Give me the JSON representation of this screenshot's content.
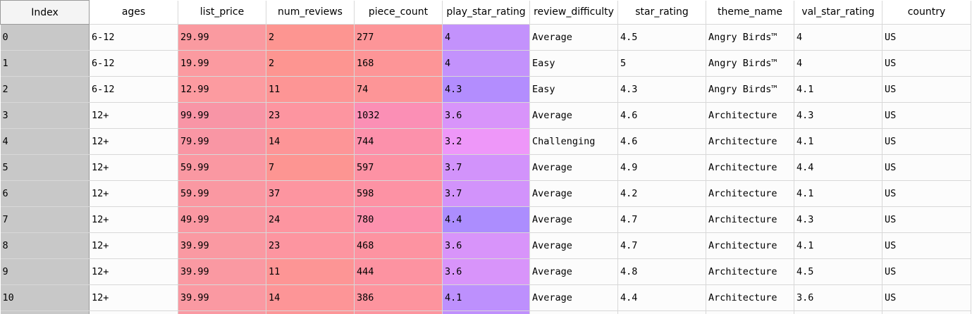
{
  "columns": [
    {
      "key": "index",
      "label": "Index",
      "width": 126
    },
    {
      "key": "ages",
      "label": "ages",
      "width": 126
    },
    {
      "key": "list_price",
      "label": "list_price",
      "width": 125
    },
    {
      "key": "num_reviews",
      "label": "num_reviews",
      "width": 125
    },
    {
      "key": "piece_count",
      "label": "piece_count",
      "width": 125
    },
    {
      "key": "play_star_rating",
      "label": "play_star_rating",
      "width": 124
    },
    {
      "key": "review_difficulty",
      "label": "review_difficulty",
      "width": 125
    },
    {
      "key": "star_rating",
      "label": "star_rating",
      "width": 125
    },
    {
      "key": "theme_name",
      "label": "theme_name",
      "width": 125
    },
    {
      "key": "val_star_rating",
      "label": "val_star_rating",
      "width": 125
    },
    {
      "key": "country",
      "label": "country",
      "width": 126
    }
  ],
  "rows": [
    {
      "index": "0",
      "ages": "6-12",
      "list_price": "29.99",
      "num_reviews": "2",
      "piece_count": "277",
      "play_star_rating": "4",
      "review_difficulty": "Average",
      "star_rating": "4.5",
      "theme_name": "Angry Birds™",
      "val_star_rating": "4",
      "country": "US",
      "colors": {
        "list_price": "#fa9aa0",
        "num_reviews": "#fd9591",
        "piece_count": "#fd9598",
        "play_star_rating": "#c392fc"
      }
    },
    {
      "index": "1",
      "ages": "6-12",
      "list_price": "19.99",
      "num_reviews": "2",
      "piece_count": "168",
      "play_star_rating": "4",
      "review_difficulty": "Easy",
      "star_rating": "5",
      "theme_name": "Angry Birds™",
      "val_star_rating": "4",
      "country": "US",
      "colors": {
        "list_price": "#fb9aa0",
        "num_reviews": "#fd9591",
        "piece_count": "#fd9597",
        "play_star_rating": "#c392fc"
      }
    },
    {
      "index": "2",
      "ages": "6-12",
      "list_price": "12.99",
      "num_reviews": "11",
      "piece_count": "74",
      "play_star_rating": "4.3",
      "review_difficulty": "Easy",
      "star_rating": "4.3",
      "theme_name": "Angry Birds™",
      "val_star_rating": "4.1",
      "country": "US",
      "colors": {
        "list_price": "#fc9ba0",
        "num_reviews": "#fd9595",
        "piece_count": "#fd9597",
        "play_star_rating": "#b38dfe"
      }
    },
    {
      "index": "3",
      "ages": "12+",
      "list_price": "99.99",
      "num_reviews": "23",
      "piece_count": "1032",
      "play_star_rating": "3.6",
      "review_difficulty": "Average",
      "star_rating": "4.6",
      "theme_name": "Architecture",
      "val_star_rating": "4.3",
      "country": "US",
      "colors": {
        "list_price": "#f895a6",
        "num_reviews": "#fd95a0",
        "piece_count": "#fb8fb5",
        "play_star_rating": "#d894fa"
      }
    },
    {
      "index": "4",
      "ages": "12+",
      "list_price": "79.99",
      "num_reviews": "14",
      "piece_count": "744",
      "play_star_rating": "3.2",
      "review_difficulty": "Challenging",
      "star_rating": "4.6",
      "theme_name": "Architecture",
      "val_star_rating": "4.1",
      "country": "US",
      "colors": {
        "list_price": "#f996a4",
        "num_reviews": "#fd9597",
        "piece_count": "#fc91ab",
        "play_star_rating": "#ee97f9"
      }
    },
    {
      "index": "5",
      "ages": "12+",
      "list_price": "59.99",
      "num_reviews": "7",
      "piece_count": "597",
      "play_star_rating": "3.7",
      "review_difficulty": "Average",
      "star_rating": "4.9",
      "theme_name": "Architecture",
      "val_star_rating": "4.4",
      "country": "US",
      "colors": {
        "list_price": "#fa98a2",
        "num_reviews": "#fd9592",
        "piece_count": "#fd92a4",
        "play_star_rating": "#d293fb"
      }
    },
    {
      "index": "6",
      "ages": "12+",
      "list_price": "59.99",
      "num_reviews": "37",
      "piece_count": "598",
      "play_star_rating": "3.7",
      "review_difficulty": "Average",
      "star_rating": "4.2",
      "theme_name": "Architecture",
      "val_star_rating": "4.1",
      "country": "US",
      "colors": {
        "list_price": "#fa98a2",
        "num_reviews": "#fd95a0",
        "piece_count": "#fd92a4",
        "play_star_rating": "#d293fb"
      }
    },
    {
      "index": "7",
      "ages": "12+",
      "list_price": "49.99",
      "num_reviews": "24",
      "piece_count": "780",
      "play_star_rating": "4.4",
      "review_difficulty": "Average",
      "star_rating": "4.7",
      "theme_name": "Architecture",
      "val_star_rating": "4.3",
      "country": "US",
      "colors": {
        "list_price": "#fa98a2",
        "num_reviews": "#fd95a0",
        "piece_count": "#fc91ad",
        "play_star_rating": "#ac8dfe"
      }
    },
    {
      "index": "8",
      "ages": "12+",
      "list_price": "39.99",
      "num_reviews": "23",
      "piece_count": "468",
      "play_star_rating": "3.6",
      "review_difficulty": "Average",
      "star_rating": "4.7",
      "theme_name": "Architecture",
      "val_star_rating": "4.1",
      "country": "US",
      "colors": {
        "list_price": "#fa99a2",
        "num_reviews": "#fd95a0",
        "piece_count": "#fd93a1",
        "play_star_rating": "#d894fa"
      }
    },
    {
      "index": "9",
      "ages": "12+",
      "list_price": "39.99",
      "num_reviews": "11",
      "piece_count": "444",
      "play_star_rating": "3.6",
      "review_difficulty": "Average",
      "star_rating": "4.8",
      "theme_name": "Architecture",
      "val_star_rating": "4.5",
      "country": "US",
      "colors": {
        "list_price": "#fa99a2",
        "num_reviews": "#fd9595",
        "piece_count": "#fd93a1",
        "play_star_rating": "#d894fa"
      }
    },
    {
      "index": "10",
      "ages": "12+",
      "list_price": "39.99",
      "num_reviews": "14",
      "piece_count": "386",
      "play_star_rating": "4.1",
      "review_difficulty": "Average",
      "star_rating": "4.4",
      "theme_name": "Architecture",
      "val_star_rating": "3.6",
      "country": "US",
      "colors": {
        "list_price": "#fa99a2",
        "num_reviews": "#fd9597",
        "piece_count": "#fd949e",
        "play_star_rating": "#bd90fd"
      }
    }
  ],
  "partial_row_colors": {
    "list_price": "#fa99a2",
    "num_reviews": "#fd9597",
    "piece_count": "#fd949e",
    "play_star_rating": "#c08ffd"
  }
}
